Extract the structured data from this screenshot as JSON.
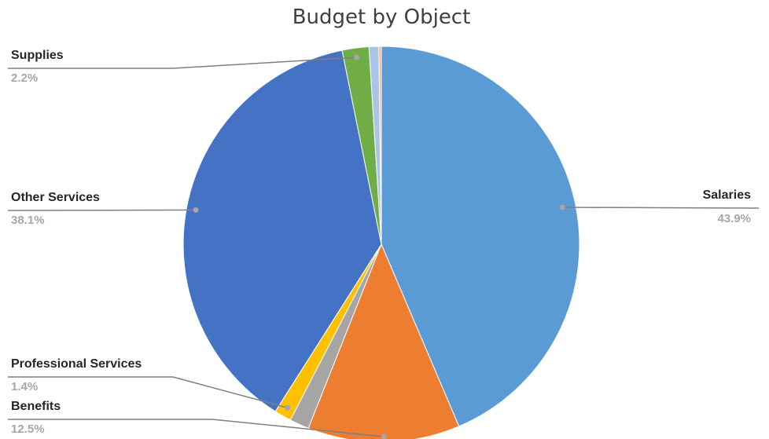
{
  "chart_data": {
    "type": "pie",
    "title": "Budget by Object",
    "slices": [
      {
        "name": "Salaries",
        "value": 43.9,
        "label": "43.9%",
        "color": "#5b9bd5"
      },
      {
        "name": "Benefits",
        "value": 12.5,
        "label": "12.5%",
        "color": "#ed7d31"
      },
      {
        "name": "",
        "value": 1.6,
        "label": "",
        "color": "#a5a5a5"
      },
      {
        "name": "Professional Services",
        "value": 1.4,
        "label": "1.4%",
        "color": "#ffc000"
      },
      {
        "name": "Other Services",
        "value": 38.1,
        "label": "38.1%",
        "color": "#4472c4"
      },
      {
        "name": "Supplies",
        "value": 2.2,
        "label": "2.2%",
        "color": "#70ad47"
      },
      {
        "name": "",
        "value": 0.8,
        "label": "",
        "color": "#a9c4e6"
      },
      {
        "name": "",
        "value": 0.2,
        "label": "",
        "color": "#f4b183"
      }
    ],
    "legend": "none",
    "labels": "outside with leader lines"
  }
}
